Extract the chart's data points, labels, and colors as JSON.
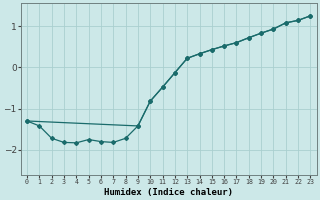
{
  "xlabel": "Humidex (Indice chaleur)",
  "background_color": "#cce8e8",
  "grid_color": "#aacfcf",
  "line_color": "#1a6b6b",
  "line1_x": [
    0,
    1,
    2,
    3,
    4,
    5,
    6,
    7,
    8,
    9,
    10,
    11,
    12,
    13,
    14,
    15,
    16,
    17,
    18,
    19,
    20,
    21,
    22,
    23
  ],
  "line1_y": [
    -1.3,
    -1.42,
    -1.72,
    -1.82,
    -1.83,
    -1.75,
    -1.8,
    -1.82,
    -1.72,
    -1.42,
    -0.82,
    -0.48,
    -0.13,
    0.22,
    0.33,
    0.43,
    0.52,
    0.6,
    0.72,
    0.83,
    0.93,
    1.08,
    1.14,
    1.25
  ],
  "line2_x": [
    0,
    9,
    10,
    11,
    12,
    13,
    14,
    15,
    16,
    17,
    18,
    19,
    20,
    21,
    22,
    23
  ],
  "line2_y": [
    -1.3,
    -1.42,
    -0.82,
    -0.48,
    -0.13,
    0.22,
    0.33,
    0.43,
    0.52,
    0.6,
    0.72,
    0.83,
    0.93,
    1.08,
    1.14,
    1.25
  ],
  "xlim": [
    -0.5,
    23.5
  ],
  "ylim": [
    -2.6,
    1.55
  ],
  "yticks": [
    -2,
    -1,
    0,
    1
  ],
  "xticks": [
    0,
    1,
    2,
    3,
    4,
    5,
    6,
    7,
    8,
    9,
    10,
    11,
    12,
    13,
    14,
    15,
    16,
    17,
    18,
    19,
    20,
    21,
    22,
    23
  ],
  "spine_color": "#708080",
  "tick_color": "#404040"
}
